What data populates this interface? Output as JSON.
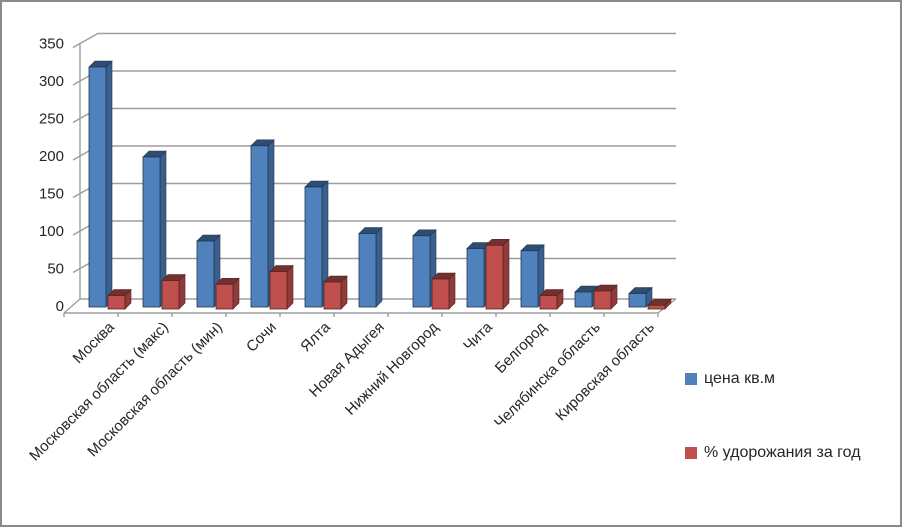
{
  "chart_data": {
    "type": "bar",
    "style": "3d-clustered-column",
    "title": "",
    "xlabel": "",
    "ylabel": "",
    "categories": [
      "Москва",
      "Московская область (макс)",
      "Московская область (мин)",
      "Сочи",
      "Ялта",
      "Новая Адыгея",
      "Нижний Новгород",
      "Чита",
      "Белгород",
      "Челябинска область",
      "Кировская область"
    ],
    "series": [
      {
        "name": "цена кв.м",
        "color": "#4F81BD",
        "values": [
          320,
          200,
          88,
          215,
          160,
          98,
          95,
          78,
          75,
          20,
          18
        ]
      },
      {
        "name": "% удорожания за год",
        "color": "#C0504D",
        "values": [
          18,
          38,
          33,
          50,
          36,
          0,
          40,
          85,
          18,
          24,
          5
        ]
      }
    ],
    "ylim": [
      0,
      350
    ],
    "y_tick_step": 50,
    "y_ticks": [
      0,
      50,
      100,
      150,
      200,
      250,
      300,
      350
    ],
    "grid": true,
    "legend_position": "right"
  },
  "styles": {
    "grid_color": "#9D9D9D",
    "text_color": "#262626",
    "background": "#FFFFFF",
    "border_color": "#8A8A8A"
  }
}
